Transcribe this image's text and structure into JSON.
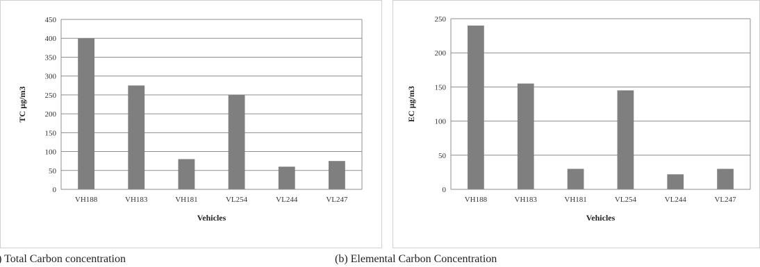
{
  "captions": {
    "a": "a) Total Carbon concentration",
    "b": "(b) Elemental Carbon Concentration"
  },
  "colors": {
    "bar": "#7f7f7f",
    "grid": "#8c8c8c",
    "axis": "#8c8c8c"
  },
  "chart_data": [
    {
      "type": "bar",
      "categories": [
        "VH188",
        "VH183",
        "VH181",
        "VL254",
        "VL244",
        "VL247"
      ],
      "values": [
        400,
        275,
        80,
        250,
        60,
        75
      ],
      "xlabel": "Vehicles",
      "ylabel": "TC µg/m3",
      "ylim": [
        0,
        450
      ],
      "yticks": [
        0,
        50,
        100,
        150,
        200,
        250,
        300,
        350,
        400,
        450
      ],
      "grid": true,
      "legend": "none"
    },
    {
      "type": "bar",
      "categories": [
        "VH188",
        "VH183",
        "VH181",
        "VL254",
        "VL244",
        "VL247"
      ],
      "values": [
        240,
        155,
        30,
        145,
        22,
        30
      ],
      "xlabel": "Vehicles",
      "ylabel": "EC µg/m3",
      "ylim": [
        0,
        250
      ],
      "yticks": [
        0,
        50,
        100,
        150,
        200,
        250
      ],
      "grid": true,
      "legend": "none"
    }
  ]
}
